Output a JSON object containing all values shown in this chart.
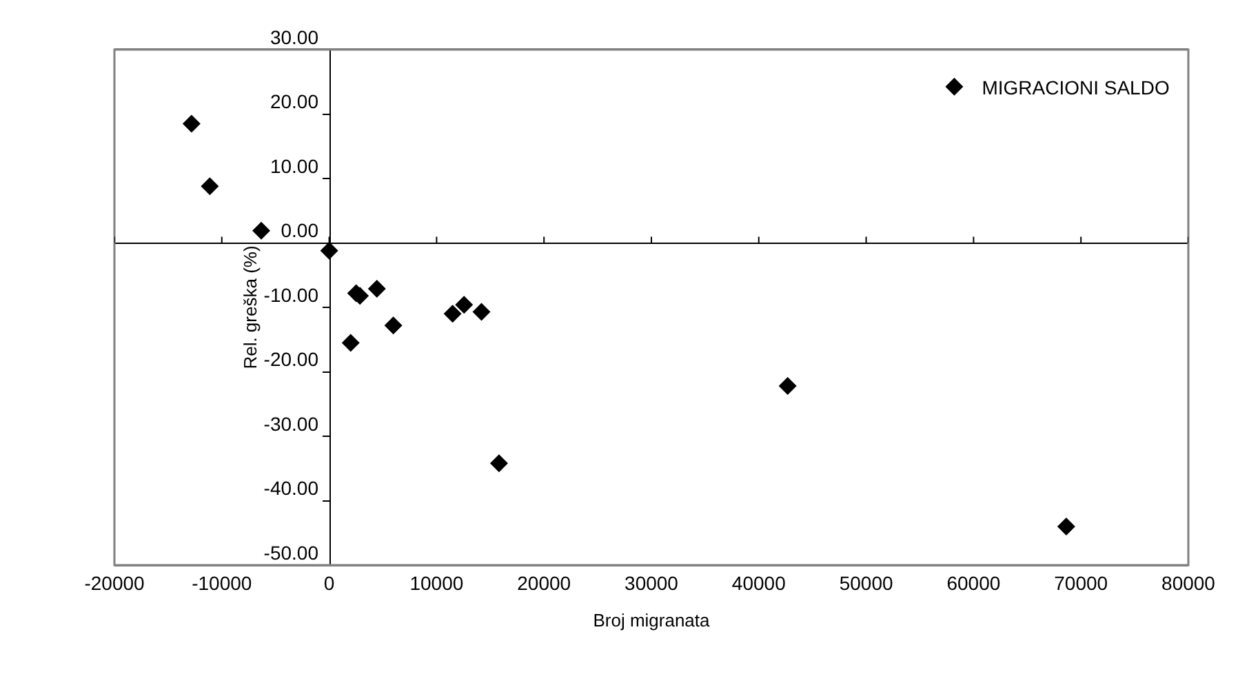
{
  "chart_data": {
    "type": "scatter",
    "xlabel": "Broj migranata",
    "ylabel": "Rel. greška (%)",
    "x": [
      -12820,
      -11120,
      -6330,
      0,
      2000,
      2510,
      2860,
      4440,
      5970,
      11490,
      12560,
      14180,
      15810,
      42690,
      68630
    ],
    "series": [
      {
        "name": "MIGRACIONI SALDO",
        "color": "#000000",
        "values": [
          18.5,
          8.8,
          1.9,
          -1.2,
          -15.5,
          -7.8,
          -8.2,
          -7.1,
          -12.8,
          -11.0,
          -9.6,
          -10.7,
          -34.2,
          -22.2,
          -44.0
        ]
      }
    ],
    "xlim": [
      -20000,
      80000
    ],
    "xticks": [
      -20000,
      -10000,
      0,
      10000,
      20000,
      30000,
      40000,
      50000,
      60000,
      70000,
      80000
    ],
    "ylim": [
      -50,
      30
    ],
    "yticks": [
      {
        "value": -50,
        "label": "-50.00"
      },
      {
        "value": -40,
        "label": "-40.00"
      },
      {
        "value": -30,
        "label": "-30.00"
      },
      {
        "value": -20,
        "label": "-20.00"
      },
      {
        "value": -10,
        "label": "-10.00"
      },
      {
        "value": 0,
        "label": "0.00"
      },
      {
        "value": 10,
        "label": "10.00"
      },
      {
        "value": 20,
        "label": "20.00"
      },
      {
        "value": 30,
        "label": "30.00"
      }
    ],
    "marker": "diamond",
    "legend": "top right"
  }
}
